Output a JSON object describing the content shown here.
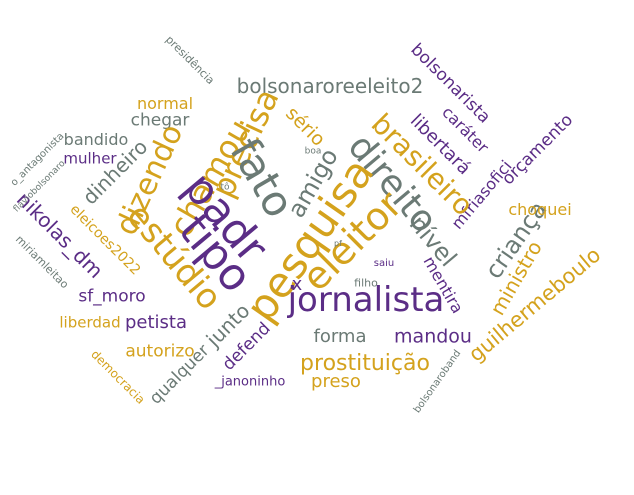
{
  "colors": {
    "gray": "#6b7a75",
    "gold": "#d4a21d",
    "purple": "#5b2d86"
  },
  "words": [
    "presidência",
    "bolsonaroreeleito2",
    "bolsonarista",
    "caráter",
    "orçamento",
    "normal",
    "sério",
    "libertará",
    "mfriasofici",
    "chegar",
    "bandido",
    "mulher",
    "precisa",
    "dizendo",
    "chamou",
    "amigo",
    "brasileiro",
    "direito",
    "fato",
    "padr",
    "tipo",
    "estúdio",
    "pesquisa",
    "eleitor",
    "nível",
    "criança",
    "dinheiro",
    "nikolas_dm",
    "eleicoes2022",
    "jornalista",
    "choquei",
    "ministro",
    "guilhermeboulo",
    "mentira",
    "sf_moro",
    "liberdad",
    "petista",
    "junto",
    "forma",
    "mandou",
    "autorizo",
    "defend",
    "prostituição",
    "preso",
    "qualquer",
    "_janoninho",
    "democracia",
    "filho",
    "saiu",
    "bolsonaroband",
    "o_antagonista",
    "flaviobolsonaro",
    "miriamleitao",
    "boa",
    "x",
    "tô",
    "pf"
  ]
}
